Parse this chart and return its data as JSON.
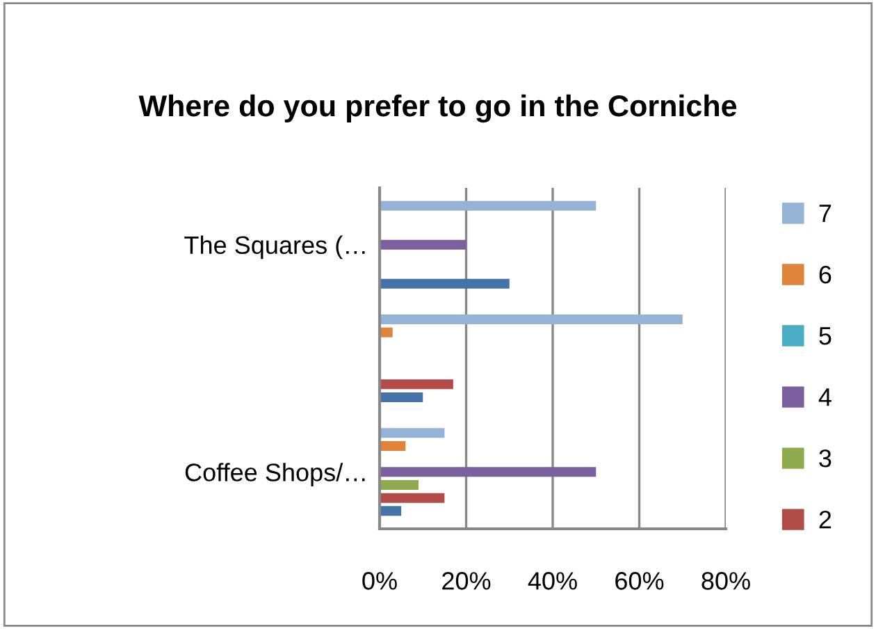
{
  "chart_data": {
    "type": "bar",
    "orientation": "horizontal",
    "title": "Where do you prefer to go in the Corniche",
    "categories": [
      "The Squares (…",
      null,
      "Coffee Shops/…"
    ],
    "series": [
      {
        "name": "7",
        "color": "#95b3d7",
        "values": [
          50,
          70,
          15
        ]
      },
      {
        "name": "6",
        "color": "#e0833c",
        "values": [
          0,
          3,
          6
        ]
      },
      {
        "name": "5",
        "color": "#4bacc6",
        "values": [
          0,
          0,
          0
        ]
      },
      {
        "name": "4",
        "color": "#7b5f9e",
        "values": [
          20,
          0,
          50
        ]
      },
      {
        "name": "3",
        "color": "#8eaa4e",
        "values": [
          0,
          0,
          9
        ]
      },
      {
        "name": "2",
        "color": "#b14c48",
        "values": [
          0,
          17,
          15
        ]
      },
      {
        "color": "#4572a7",
        "values": [
          30,
          10,
          5
        ]
      }
    ],
    "xlim": [
      0,
      80
    ],
    "xticks": [
      {
        "value": 0,
        "label": "0%"
      },
      {
        "value": 20,
        "label": "20%"
      },
      {
        "value": 40,
        "label": "40%"
      },
      {
        "value": 60,
        "label": "60%"
      },
      {
        "value": 80,
        "label": "80%"
      }
    ],
    "grid": "x",
    "legend": "right"
  }
}
